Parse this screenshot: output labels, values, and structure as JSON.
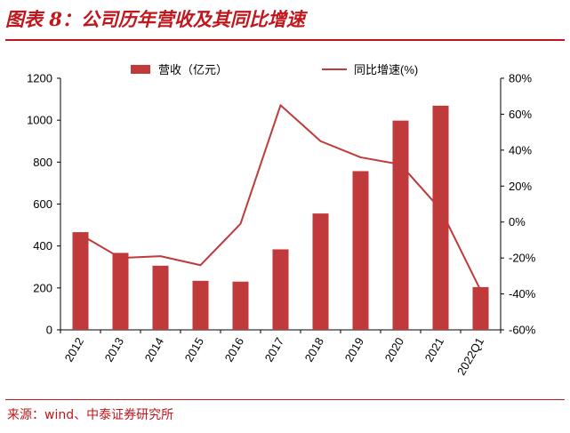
{
  "header": {
    "title": "图表 8：公司历年营收及其同比增速"
  },
  "footer": {
    "source": "来源：wind、中泰证券研究所"
  },
  "chart_data": {
    "type": "bar",
    "categories": [
      "2012",
      "2013",
      "2014",
      "2015",
      "2016",
      "2017",
      "2018",
      "2019",
      "2020",
      "2021",
      "2022Q1"
    ],
    "series": [
      {
        "name": "营收（亿元）",
        "type": "bar",
        "axis": "left",
        "color": "#c0393b",
        "values": [
          466,
          367,
          306,
          234,
          230,
          384,
          555,
          757,
          998,
          1069,
          204
        ]
      },
      {
        "name": "同比增速(%)",
        "type": "line",
        "axis": "right",
        "color": "#c0393b",
        "values": [
          -7,
          -20,
          -19,
          -24,
          -1,
          65,
          45,
          36,
          32,
          7,
          -38
        ]
      }
    ],
    "y_left": {
      "min": 0,
      "max": 1200,
      "ticks": [
        "0",
        "200",
        "400",
        "600",
        "800",
        "1000",
        "1200"
      ]
    },
    "y_right": {
      "min": -60,
      "max": 80,
      "ticks": [
        "-60%",
        "-40%",
        "-20%",
        "0%",
        "20%",
        "40%",
        "60%",
        "80%"
      ]
    },
    "legend_position": "top",
    "grid": false
  }
}
